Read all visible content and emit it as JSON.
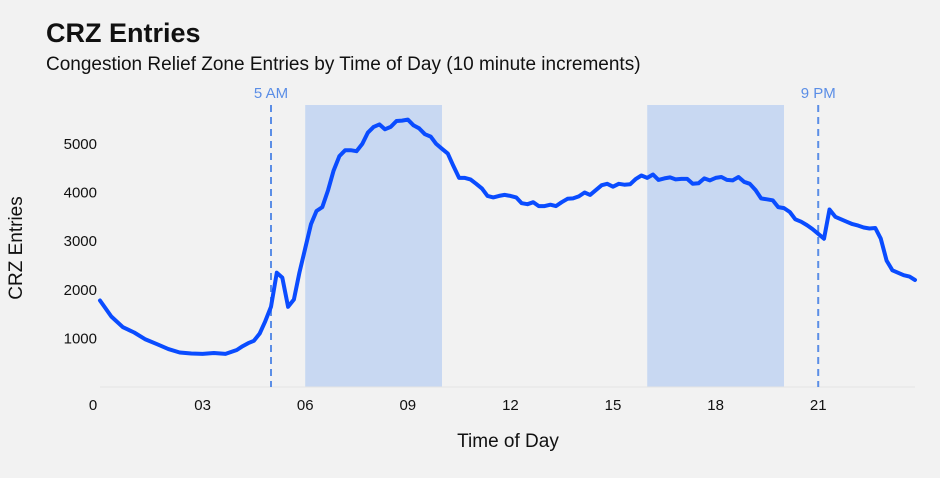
{
  "chart_data": {
    "type": "line",
    "title": "CRZ Entries",
    "subtitle": "Congestion Relief Zone Entries by Time of Day (10 minute increments)",
    "xlabel": "Time of Day",
    "ylabel": "CRZ Entries",
    "xlim": [
      0,
      23.83
    ],
    "ylim": [
      0,
      5800
    ],
    "xticks": [
      0,
      3,
      6,
      9,
      12,
      15,
      18,
      21
    ],
    "xtick_labels": [
      "0",
      "03",
      "06",
      "09",
      "12",
      "15",
      "18",
      "21"
    ],
    "yticks": [
      1000,
      2000,
      3000,
      4000,
      5000
    ],
    "ytick_labels": [
      "1000",
      "2000",
      "3000",
      "4000",
      "5000"
    ],
    "grid": false,
    "line_color": "#0a4cff",
    "shaded_ranges": [
      {
        "start": 6,
        "end": 10,
        "color": "#c8d8f2"
      },
      {
        "start": 16,
        "end": 20,
        "color": "#c8d8f2"
      }
    ],
    "vertical_markers": [
      {
        "x": 5,
        "label": "5 AM",
        "color": "#5b8ee6"
      },
      {
        "x": 21,
        "label": "9 PM",
        "color": "#5b8ee6"
      }
    ],
    "series": [
      {
        "x": [
          0,
          0.33,
          0.67,
          1.0,
          1.33,
          1.67,
          2.0,
          2.33,
          2.67,
          3.0,
          3.33,
          3.67,
          4.0,
          4.17,
          4.33,
          4.5,
          4.67,
          4.83,
          5.0,
          5.17,
          5.33,
          5.5,
          5.67,
          5.83,
          6.0,
          6.17,
          6.33,
          6.5,
          6.67,
          6.83,
          7.0,
          7.17,
          7.33,
          7.5,
          7.67,
          7.83,
          8.0,
          8.17,
          8.33,
          8.5,
          8.67,
          8.83,
          9.0,
          9.17,
          9.33,
          9.5,
          9.67,
          9.83,
          10.0,
          10.17,
          10.33,
          10.5,
          10.67,
          10.83,
          11.0,
          11.17,
          11.33,
          11.5,
          11.67,
          11.83,
          12.0,
          12.17,
          12.33,
          12.5,
          12.67,
          12.83,
          13.0,
          13.17,
          13.33,
          13.5,
          13.67,
          13.83,
          14.0,
          14.17,
          14.33,
          14.5,
          14.67,
          14.83,
          15.0,
          15.17,
          15.33,
          15.5,
          15.67,
          15.83,
          16.0,
          16.17,
          16.33,
          16.5,
          16.67,
          16.83,
          17.0,
          17.17,
          17.33,
          17.5,
          17.67,
          17.83,
          18.0,
          18.17,
          18.33,
          18.5,
          18.67,
          18.83,
          19.0,
          19.17,
          19.33,
          19.5,
          19.67,
          19.83,
          20.0,
          20.17,
          20.33,
          20.5,
          20.67,
          20.83,
          21.0,
          21.17,
          21.33,
          21.5,
          21.67,
          21.83,
          22.0,
          22.17,
          22.33,
          22.5,
          22.67,
          22.83,
          23.0,
          23.17,
          23.33,
          23.5,
          23.67,
          23.83
        ],
        "values": [
          1780,
          1450,
          1230,
          1120,
          980,
          880,
          780,
          710,
          690,
          680,
          700,
          680,
          760,
          840,
          900,
          950,
          1100,
          1350,
          1650,
          2350,
          2250,
          1650,
          1800,
          2350,
          2850,
          3350,
          3620,
          3700,
          4050,
          4450,
          4750,
          4870,
          4870,
          4850,
          5000,
          5230,
          5350,
          5400,
          5300,
          5350,
          5470,
          5480,
          5500,
          5380,
          5320,
          5200,
          5150,
          5000,
          4900,
          4800,
          4550,
          4300,
          4300,
          4270,
          4180,
          4080,
          3930,
          3900,
          3930,
          3950,
          3930,
          3900,
          3780,
          3760,
          3800,
          3720,
          3720,
          3750,
          3720,
          3800,
          3870,
          3880,
          3920,
          4000,
          3950,
          4050,
          4150,
          4180,
          4120,
          4180,
          4160,
          4170,
          4280,
          4350,
          4300,
          4370,
          4260,
          4290,
          4310,
          4270,
          4280,
          4280,
          4180,
          4190,
          4290,
          4250,
          4300,
          4320,
          4260,
          4250,
          4320,
          4220,
          4180,
          4050,
          3880,
          3860,
          3840,
          3700,
          3680,
          3600,
          3450,
          3400,
          3330,
          3250,
          3150,
          3050,
          3650,
          3500,
          3450,
          3400,
          3350,
          3320,
          3280,
          3260,
          3270,
          3050,
          2600,
          2400,
          2350,
          2300,
          2270,
          2200
        ]
      }
    ]
  }
}
